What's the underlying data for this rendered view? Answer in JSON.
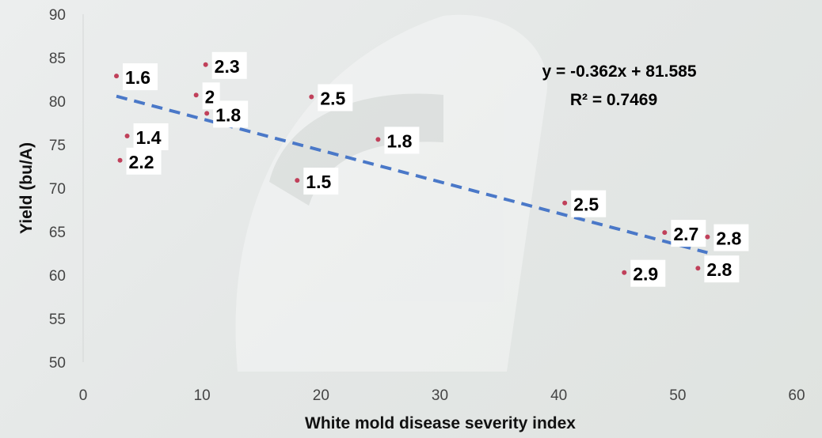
{
  "chart_data": {
    "type": "scatter",
    "title": "",
    "xlabel": "White mold disease severity index",
    "ylabel": "Yield (bu/A)",
    "xlim": [
      0,
      60
    ],
    "ylim": [
      50,
      90
    ],
    "xticks": [
      0,
      10,
      20,
      30,
      40,
      50,
      60
    ],
    "yticks": [
      50,
      55,
      60,
      65,
      70,
      75,
      80,
      85,
      90
    ],
    "grid": false,
    "legend": "none",
    "marker_color": "#c0405a",
    "trendline_color": "#4a78c8",
    "points": [
      {
        "x": 2.8,
        "y": 82.9,
        "label": "1.6"
      },
      {
        "x": 10.3,
        "y": 84.2,
        "label": "2.3"
      },
      {
        "x": 9.5,
        "y": 80.7,
        "label": "2"
      },
      {
        "x": 10.4,
        "y": 78.6,
        "label": "1.8"
      },
      {
        "x": 3.7,
        "y": 76.0,
        "label": "1.4"
      },
      {
        "x": 3.1,
        "y": 73.2,
        "label": "2.2"
      },
      {
        "x": 19.2,
        "y": 80.5,
        "label": "2.5"
      },
      {
        "x": 24.8,
        "y": 75.6,
        "label": "1.8"
      },
      {
        "x": 18.0,
        "y": 70.9,
        "label": "1.5"
      },
      {
        "x": 40.5,
        "y": 68.3,
        "label": "2.5"
      },
      {
        "x": 48.9,
        "y": 64.9,
        "label": "2.7"
      },
      {
        "x": 52.5,
        "y": 64.4,
        "label": "2.8"
      },
      {
        "x": 45.5,
        "y": 60.3,
        "label": "2.9"
      },
      {
        "x": 51.7,
        "y": 60.8,
        "label": "2.8"
      }
    ],
    "trendline": {
      "type": "linear",
      "slope": -0.362,
      "intercept": 81.585,
      "x_range": [
        2.8,
        52.5
      ],
      "equation": "y = -0.362x + 81.585",
      "r_squared": "R² = 0.7469"
    }
  }
}
